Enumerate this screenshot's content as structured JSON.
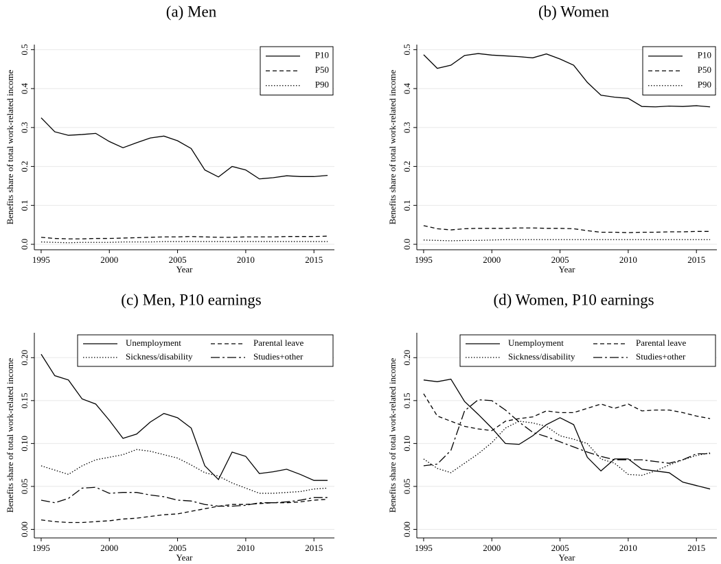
{
  "chart_data": [
    {
      "type": "line",
      "title": "(a) Men",
      "x_label": "Year",
      "y_label": "Benefits share of total work-related income",
      "x": [
        1995,
        1996,
        1997,
        1998,
        1999,
        2000,
        2001,
        2002,
        2003,
        2004,
        2005,
        2006,
        2007,
        2008,
        2009,
        2010,
        2011,
        2012,
        2013,
        2014,
        2015,
        2016
      ],
      "xlim": [
        1994.5,
        2016.5
      ],
      "xticks": [
        1995,
        2000,
        2005,
        2010,
        2015
      ],
      "ylim": [
        -0.014,
        0.513
      ],
      "yticks": [
        {
          "value": 0,
          "label": "0.0"
        },
        0.1,
        0.2,
        0.3,
        0.4,
        0.5
      ],
      "grid": true,
      "legend": "upper right",
      "legend_columns": 1,
      "series": [
        {
          "name": "P10",
          "color": "#000000",
          "linestyle": "solid",
          "values": [
            0.325,
            0.289,
            0.28,
            0.282,
            0.285,
            0.264,
            0.248,
            0.261,
            0.273,
            0.278,
            0.266,
            0.246,
            0.191,
            0.173,
            0.2,
            0.191,
            0.168,
            0.171,
            0.176,
            0.174,
            0.174,
            0.177
          ]
        },
        {
          "name": "P50",
          "color": "#000000",
          "linestyle": "dashed",
          "values": [
            0.018,
            0.015,
            0.014,
            0.014,
            0.015,
            0.015,
            0.016,
            0.017,
            0.018,
            0.019,
            0.019,
            0.02,
            0.019,
            0.018,
            0.018,
            0.019,
            0.019,
            0.019,
            0.02,
            0.02,
            0.02,
            0.021
          ]
        },
        {
          "name": "P90",
          "color": "#000000",
          "linestyle": "dotted",
          "values": [
            0.006,
            0.005,
            0.004,
            0.005,
            0.005,
            0.005,
            0.006,
            0.006,
            0.006,
            0.007,
            0.007,
            0.007,
            0.007,
            0.007,
            0.007,
            0.007,
            0.007,
            0.007,
            0.007,
            0.007,
            0.007,
            0.007
          ]
        }
      ]
    },
    {
      "type": "line",
      "title": "(b) Women",
      "x_label": "Year",
      "y_label": "Benefits share of total work-related income",
      "x": [
        1995,
        1996,
        1997,
        1998,
        1999,
        2000,
        2001,
        2002,
        2003,
        2004,
        2005,
        2006,
        2007,
        2008,
        2009,
        2010,
        2011,
        2012,
        2013,
        2014,
        2015,
        2016
      ],
      "xlim": [
        1994.5,
        2016.5
      ],
      "xticks": [
        1995,
        2000,
        2005,
        2010,
        2015
      ],
      "ylim": [
        -0.014,
        0.513
      ],
      "yticks": [
        {
          "value": 0,
          "label": "0.0"
        },
        0.1,
        0.2,
        0.3,
        0.4,
        0.5
      ],
      "grid": true,
      "legend": "upper right",
      "legend_columns": 1,
      "series": [
        {
          "name": "P10",
          "color": "#000000",
          "linestyle": "solid",
          "values": [
            0.487,
            0.452,
            0.46,
            0.485,
            0.49,
            0.486,
            0.484,
            0.482,
            0.479,
            0.489,
            0.476,
            0.46,
            0.416,
            0.383,
            0.378,
            0.375,
            0.354,
            0.353,
            0.355,
            0.354,
            0.356,
            0.353
          ]
        },
        {
          "name": "P50",
          "color": "#000000",
          "linestyle": "dashed",
          "values": [
            0.048,
            0.04,
            0.037,
            0.04,
            0.041,
            0.041,
            0.041,
            0.042,
            0.042,
            0.041,
            0.041,
            0.04,
            0.035,
            0.031,
            0.031,
            0.03,
            0.031,
            0.031,
            0.032,
            0.032,
            0.033,
            0.033
          ]
        },
        {
          "name": "P90",
          "color": "#000000",
          "linestyle": "dotted",
          "values": [
            0.011,
            0.01,
            0.009,
            0.01,
            0.01,
            0.011,
            0.012,
            0.012,
            0.012,
            0.012,
            0.012,
            0.012,
            0.012,
            0.012,
            0.012,
            0.012,
            0.012,
            0.012,
            0.012,
            0.012,
            0.012,
            0.012
          ]
        }
      ]
    },
    {
      "type": "line",
      "title": "(c) Men, P10 earnings",
      "x_label": "Year",
      "y_label": "Benefits share of total work-related income",
      "x": [
        1995,
        1996,
        1997,
        1998,
        1999,
        2000,
        2001,
        2002,
        2003,
        2004,
        2005,
        2006,
        2007,
        2008,
        2009,
        2010,
        2011,
        2012,
        2013,
        2014,
        2015,
        2016
      ],
      "xlim": [
        1994.5,
        2016.5
      ],
      "xticks": [
        1995,
        2000,
        2005,
        2010,
        2015
      ],
      "ylim": [
        -0.01,
        0.229
      ],
      "yticks": [
        {
          "value": 0,
          "label": "0.00"
        },
        0.05,
        {
          "value": 0.1,
          "label": "0.10"
        },
        0.15,
        {
          "value": 0.2,
          "label": "0.20"
        }
      ],
      "grid": true,
      "legend": "top",
      "legend_columns": 2,
      "series": [
        {
          "name": "Unemployment",
          "color": "#000000",
          "linestyle": "solid",
          "values": [
            0.204,
            0.179,
            0.174,
            0.152,
            0.146,
            0.127,
            0.106,
            0.111,
            0.125,
            0.135,
            0.13,
            0.118,
            0.074,
            0.058,
            0.09,
            0.085,
            0.065,
            0.067,
            0.07,
            0.064,
            0.057,
            0.057
          ]
        },
        {
          "name": "Parental leave",
          "color": "#000000",
          "linestyle": "dashed",
          "values": [
            0.011,
            0.009,
            0.008,
            0.008,
            0.009,
            0.01,
            0.012,
            0.013,
            0.015,
            0.017,
            0.018,
            0.021,
            0.024,
            0.027,
            0.029,
            0.029,
            0.03,
            0.031,
            0.031,
            0.032,
            0.034,
            0.035
          ]
        },
        {
          "name": "Sickness/disability",
          "color": "#000000",
          "linestyle": "dotted",
          "values": [
            0.074,
            0.069,
            0.064,
            0.074,
            0.081,
            0.084,
            0.087,
            0.093,
            0.091,
            0.087,
            0.083,
            0.075,
            0.066,
            0.062,
            0.054,
            0.048,
            0.042,
            0.042,
            0.043,
            0.044,
            0.047,
            0.048
          ]
        },
        {
          "name": "Studies+other",
          "color": "#000000",
          "linestyle": "dashdot",
          "values": [
            0.034,
            0.031,
            0.036,
            0.048,
            0.049,
            0.042,
            0.043,
            0.043,
            0.04,
            0.038,
            0.034,
            0.033,
            0.029,
            0.027,
            0.027,
            0.028,
            0.031,
            0.031,
            0.032,
            0.034,
            0.037,
            0.037
          ]
        }
      ]
    },
    {
      "type": "line",
      "title": "(d) Women, P10 earnings",
      "x_label": "Year",
      "y_label": "Benefits share of total work-related income",
      "x": [
        1995,
        1996,
        1997,
        1998,
        1999,
        2000,
        2001,
        2002,
        2003,
        2004,
        2005,
        2006,
        2007,
        2008,
        2009,
        2010,
        2011,
        2012,
        2013,
        2014,
        2015,
        2016
      ],
      "xlim": [
        1994.5,
        2016.5
      ],
      "xticks": [
        1995,
        2000,
        2005,
        2010,
        2015
      ],
      "ylim": [
        -0.01,
        0.229
      ],
      "yticks": [
        {
          "value": 0,
          "label": "0.00"
        },
        0.05,
        {
          "value": 0.1,
          "label": "0.10"
        },
        0.15,
        {
          "value": 0.2,
          "label": "0.20"
        }
      ],
      "grid": true,
      "legend": "top",
      "legend_columns": 2,
      "series": [
        {
          "name": "Unemployment",
          "color": "#000000",
          "linestyle": "solid",
          "values": [
            0.174,
            0.172,
            0.175,
            0.149,
            0.134,
            0.118,
            0.1,
            0.099,
            0.109,
            0.122,
            0.13,
            0.122,
            0.084,
            0.068,
            0.082,
            0.082,
            0.07,
            0.068,
            0.066,
            0.055,
            0.051,
            0.047
          ]
        },
        {
          "name": "Parental leave",
          "color": "#000000",
          "linestyle": "dashed",
          "values": [
            0.158,
            0.132,
            0.126,
            0.12,
            0.117,
            0.115,
            0.126,
            0.129,
            0.131,
            0.138,
            0.136,
            0.136,
            0.141,
            0.146,
            0.141,
            0.146,
            0.138,
            0.139,
            0.139,
            0.136,
            0.132,
            0.129
          ]
        },
        {
          "name": "Sickness/disability",
          "color": "#000000",
          "linestyle": "dotted",
          "values": [
            0.082,
            0.071,
            0.066,
            0.077,
            0.088,
            0.101,
            0.118,
            0.126,
            0.124,
            0.12,
            0.109,
            0.105,
            0.1,
            0.082,
            0.077,
            0.064,
            0.063,
            0.068,
            0.075,
            0.081,
            0.086,
            0.089
          ]
        },
        {
          "name": "Studies+other",
          "color": "#000000",
          "linestyle": "dashdot",
          "values": [
            0.074,
            0.076,
            0.092,
            0.138,
            0.151,
            0.15,
            0.139,
            0.125,
            0.113,
            0.108,
            0.102,
            0.096,
            0.09,
            0.085,
            0.081,
            0.081,
            0.081,
            0.079,
            0.077,
            0.081,
            0.088,
            0.088
          ]
        }
      ]
    }
  ]
}
